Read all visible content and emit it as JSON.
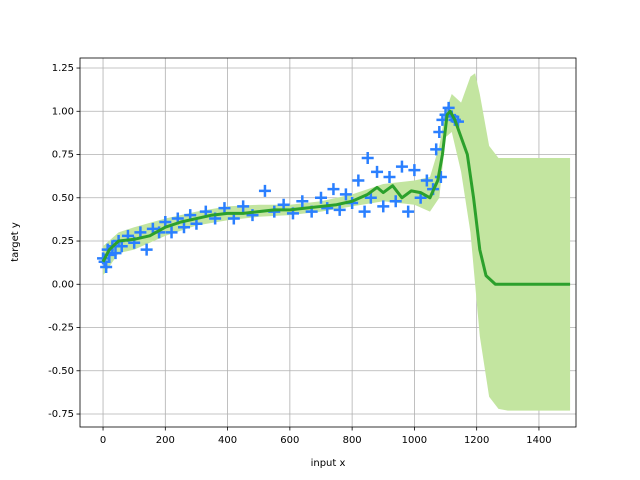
{
  "chart_data": {
    "type": "gp",
    "xlabel": "input x",
    "ylabel": "target y",
    "xlim": [
      -74,
      1519
    ],
    "ylim": [
      -0.825,
      1.308
    ],
    "xticks": [
      0,
      200,
      400,
      600,
      800,
      1000,
      1200,
      1400
    ],
    "yticks": [
      -0.75,
      {
        "value": -0.5,
        "label": "-0.50"
      },
      -0.25,
      {
        "value": 0,
        "label": "0.00"
      },
      0.25,
      {
        "value": 0.5,
        "label": "0.50"
      },
      0.75,
      {
        "value": 1,
        "label": "1.00"
      },
      1.25
    ],
    "grid": true,
    "band": {
      "color": "#c3e5a0",
      "x": [
        0,
        50,
        100,
        200,
        300,
        400,
        500,
        600,
        700,
        800,
        900,
        1000,
        1050,
        1080,
        1100,
        1120,
        1150,
        1180,
        1195,
        1210,
        1240,
        1270,
        1300,
        1500
      ],
      "upper": [
        0.22,
        0.3,
        0.33,
        0.38,
        0.42,
        0.45,
        0.46,
        0.46,
        0.48,
        0.52,
        0.58,
        0.6,
        0.62,
        0.8,
        1.0,
        1.1,
        1.05,
        1.2,
        1.22,
        1.1,
        0.8,
        0.73,
        0.73,
        0.73
      ],
      "lower": [
        0.05,
        0.18,
        0.2,
        0.28,
        0.34,
        0.37,
        0.39,
        0.4,
        0.42,
        0.45,
        0.48,
        0.46,
        0.42,
        0.5,
        0.85,
        0.88,
        0.65,
        0.3,
        0.0,
        -0.3,
        -0.65,
        -0.72,
        -0.73,
        -0.73
      ]
    },
    "scatter": {
      "color": "#2a7fff",
      "x": [
        0,
        5,
        10,
        15,
        20,
        30,
        40,
        50,
        60,
        80,
        100,
        120,
        140,
        160,
        180,
        200,
        220,
        240,
        260,
        280,
        300,
        330,
        360,
        390,
        420,
        450,
        480,
        520,
        550,
        580,
        610,
        640,
        670,
        700,
        720,
        740,
        760,
        780,
        800,
        820,
        840,
        850,
        860,
        880,
        900,
        920,
        940,
        960,
        980,
        1000,
        1020,
        1040,
        1060,
        1070,
        1080,
        1085,
        1090,
        1100,
        1110,
        1120,
        1130,
        1140
      ],
      "values": [
        0.15,
        0.13,
        0.1,
        0.2,
        0.17,
        0.22,
        0.18,
        0.25,
        0.22,
        0.28,
        0.24,
        0.3,
        0.2,
        0.32,
        0.3,
        0.36,
        0.3,
        0.38,
        0.33,
        0.4,
        0.35,
        0.42,
        0.38,
        0.44,
        0.38,
        0.45,
        0.4,
        0.54,
        0.42,
        0.46,
        0.41,
        0.48,
        0.42,
        0.5,
        0.44,
        0.55,
        0.43,
        0.52,
        0.47,
        0.6,
        0.42,
        0.73,
        0.5,
        0.65,
        0.45,
        0.62,
        0.48,
        0.68,
        0.42,
        0.66,
        0.5,
        0.6,
        0.55,
        0.78,
        0.88,
        0.62,
        0.95,
        0.98,
        1.02,
        0.97,
        0.95,
        0.94
      ]
    },
    "line": {
      "color": "#2ca02c",
      "x": [
        0,
        20,
        50,
        100,
        150,
        200,
        250,
        300,
        350,
        400,
        450,
        500,
        550,
        600,
        650,
        700,
        750,
        800,
        850,
        880,
        900,
        930,
        960,
        990,
        1020,
        1050,
        1075,
        1090,
        1105,
        1115,
        1130,
        1150,
        1170,
        1190,
        1210,
        1230,
        1260,
        1300,
        1500
      ],
      "values": [
        0.13,
        0.2,
        0.25,
        0.26,
        0.28,
        0.33,
        0.36,
        0.38,
        0.4,
        0.41,
        0.41,
        0.42,
        0.43,
        0.43,
        0.44,
        0.45,
        0.46,
        0.48,
        0.52,
        0.56,
        0.53,
        0.57,
        0.5,
        0.54,
        0.53,
        0.5,
        0.6,
        0.75,
        0.98,
        1.0,
        0.95,
        0.85,
        0.75,
        0.5,
        0.2,
        0.05,
        0.0,
        0.0,
        0.0
      ]
    }
  }
}
